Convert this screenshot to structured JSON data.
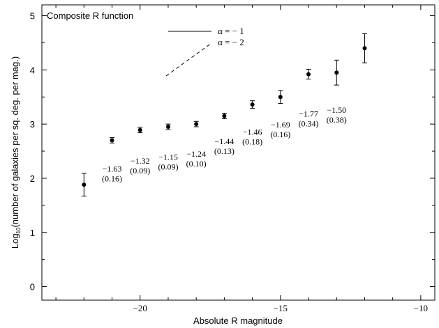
{
  "chart_data": {
    "type": "scatter",
    "title": "Composite R function",
    "xlabel": "Absolute R magnitude",
    "ylabel_prefix": "Log",
    "ylabel_sub": "10",
    "ylabel_rest": "(number of galaxies per sq. deg. per mag.)",
    "xlim": [
      -23.5,
      -9.5
    ],
    "ylim": [
      -0.25,
      5.2
    ],
    "xticks": [
      -20,
      -15,
      -10
    ],
    "xtick_labels": [
      "−20",
      "−15",
      "−10"
    ],
    "yticks": [
      0,
      1,
      2,
      3,
      4,
      5
    ],
    "ytick_labels": [
      "0",
      "1",
      "2",
      "3",
      "4",
      "5"
    ],
    "legend": [
      {
        "label": "α = − 1",
        "style": "solid"
      },
      {
        "label": "α = − 2",
        "style": "dashed"
      }
    ],
    "series": [
      {
        "x": [
          -22,
          -21,
          -20,
          -19,
          -18,
          -17,
          -16,
          -15,
          -14,
          -13,
          -12
        ],
        "y": [
          1.88,
          2.7,
          2.89,
          2.95,
          3.0,
          3.15,
          3.36,
          3.5,
          3.92,
          3.95,
          4.4
        ],
        "yerr": [
          0.21,
          0.05,
          0.05,
          0.05,
          0.05,
          0.05,
          0.07,
          0.12,
          0.09,
          0.23,
          0.27
        ]
      }
    ],
    "annotations": [
      {
        "value": "−1.63",
        "err": "(0.16)",
        "x": -21.0,
        "y": 2.12
      },
      {
        "value": "−1.32",
        "err": "(0.09)",
        "x": -20.0,
        "y": 2.27
      },
      {
        "value": "−1.15",
        "err": "(0.09)",
        "x": -19.0,
        "y": 2.34
      },
      {
        "value": "−1.24",
        "err": "(0.10)",
        "x": -18.0,
        "y": 2.4
      },
      {
        "value": "−1.44",
        "err": "(0.13)",
        "x": -17.0,
        "y": 2.63
      },
      {
        "value": "−1.46",
        "err": "(0.18)",
        "x": -16.0,
        "y": 2.8
      },
      {
        "value": "−1.69",
        "err": "(0.16)",
        "x": -15.0,
        "y": 2.94
      },
      {
        "value": "−1.77",
        "err": "(0.34)",
        "x": -14.0,
        "y": 3.14
      },
      {
        "value": "−1.50",
        "err": "(0.38)",
        "x": -13.0,
        "y": 3.21
      }
    ]
  }
}
